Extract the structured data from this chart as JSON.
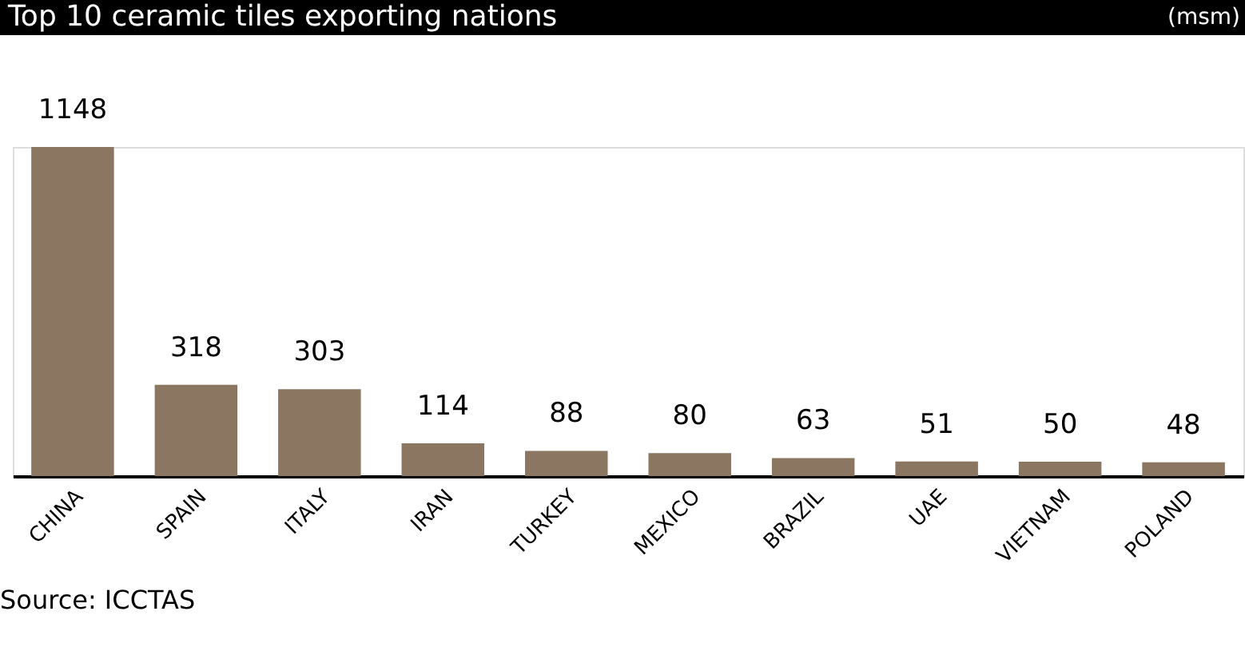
{
  "chart_data": {
    "type": "bar",
    "title": "Top 10 ceramic tiles exporting nations",
    "categories": [
      "CHINA",
      "SPAIN",
      "ITALY",
      "IRAN",
      "TURKEY",
      "MEXICO",
      "BRAZIL",
      "UAE",
      "VIETNAM",
      "POLAND"
    ],
    "values": [
      1148,
      318,
      303,
      114,
      88,
      80,
      63,
      51,
      50,
      48
    ],
    "color": "#8b7662",
    "data_labels": true,
    "grid": false,
    "annotations": [
      "(msm)",
      "Source: ICCTAS"
    ]
  }
}
